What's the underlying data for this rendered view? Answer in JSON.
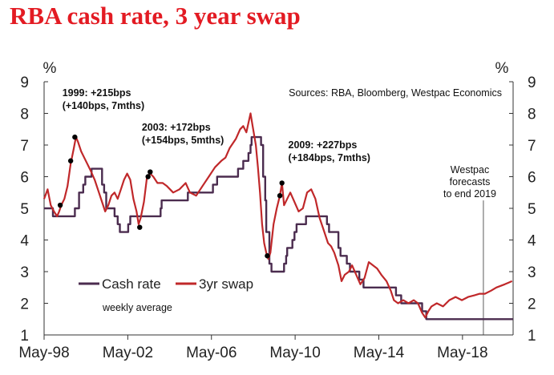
{
  "chart_data": {
    "type": "line",
    "title": "RBA cash rate, 3 year swap",
    "source": "Sources: RBA, Bloomberg, Westpac Economics",
    "ylabel_left": "%",
    "ylabel_right": "%",
    "ylim": [
      1,
      9
    ],
    "yticks": [
      "1",
      "2",
      "3",
      "4",
      "5",
      "6",
      "7",
      "8",
      "9"
    ],
    "xlim": [
      1998.33,
      2020.75
    ],
    "xticks": [
      {
        "label": "May-98",
        "value": 1998.33
      },
      {
        "label": "May-02",
        "value": 2002.33
      },
      {
        "label": "May-06",
        "value": 2006.33
      },
      {
        "label": "May-10",
        "value": 2010.33
      },
      {
        "label": "May-14",
        "value": 2014.33
      },
      {
        "label": "May-18",
        "value": 2018.33
      }
    ],
    "note": "weekly average",
    "forecast_start": 2019.33,
    "forecast_label": [
      "Westpac",
      "forecasts",
      "to end 2019"
    ],
    "annotations": [
      {
        "lines": [
          "1999: +215bps",
          "(+140bps, 7mths)"
        ],
        "x": 1999.2,
        "y": 8.55
      },
      {
        "lines": [
          "2003: +172bps",
          "(+154bps, 5mths)"
        ],
        "x": 2003.0,
        "y": 7.45
      },
      {
        "lines": [
          "2009: +227bps",
          "(+184bps, 7mths)"
        ],
        "x": 2010.0,
        "y": 6.9
      }
    ],
    "markers": [
      {
        "x": 1999.1,
        "y": 5.1
      },
      {
        "x": 1999.6,
        "y": 6.5
      },
      {
        "x": 1999.8,
        "y": 7.25
      },
      {
        "x": 2002.9,
        "y": 4.4
      },
      {
        "x": 2003.3,
        "y": 6.0
      },
      {
        "x": 2003.4,
        "y": 6.15
      },
      {
        "x": 2009.0,
        "y": 3.5
      },
      {
        "x": 2009.6,
        "y": 5.4
      },
      {
        "x": 2009.7,
        "y": 5.8
      }
    ],
    "series": [
      {
        "name": "Cash rate",
        "color": "#4b2c4f",
        "step": true,
        "points": [
          [
            1998.33,
            5.0
          ],
          [
            1998.75,
            4.75
          ],
          [
            1999.8,
            5.0
          ],
          [
            2000.0,
            5.5
          ],
          [
            2000.2,
            5.75
          ],
          [
            2000.3,
            6.0
          ],
          [
            2000.6,
            6.25
          ],
          [
            2001.1,
            5.75
          ],
          [
            2001.2,
            5.5
          ],
          [
            2001.3,
            5.0
          ],
          [
            2001.7,
            4.75
          ],
          [
            2001.85,
            4.5
          ],
          [
            2001.95,
            4.25
          ],
          [
            2002.35,
            4.5
          ],
          [
            2002.45,
            4.75
          ],
          [
            2003.9,
            5.0
          ],
          [
            2003.95,
            5.25
          ],
          [
            2005.2,
            5.5
          ],
          [
            2006.4,
            5.75
          ],
          [
            2006.6,
            6.0
          ],
          [
            2007.6,
            6.25
          ],
          [
            2007.85,
            6.5
          ],
          [
            2008.1,
            6.75
          ],
          [
            2008.2,
            7.0
          ],
          [
            2008.25,
            7.25
          ],
          [
            2008.7,
            7.0
          ],
          [
            2008.8,
            6.0
          ],
          [
            2008.9,
            5.25
          ],
          [
            2008.95,
            4.25
          ],
          [
            2009.1,
            3.25
          ],
          [
            2009.2,
            3.0
          ],
          [
            2009.8,
            3.25
          ],
          [
            2009.9,
            3.5
          ],
          [
            2009.95,
            3.75
          ],
          [
            2010.2,
            4.0
          ],
          [
            2010.3,
            4.25
          ],
          [
            2010.4,
            4.5
          ],
          [
            2010.85,
            4.75
          ],
          [
            2011.85,
            4.5
          ],
          [
            2011.95,
            4.25
          ],
          [
            2012.4,
            3.75
          ],
          [
            2012.5,
            3.5
          ],
          [
            2012.8,
            3.25
          ],
          [
            2012.95,
            3.0
          ],
          [
            2013.4,
            2.75
          ],
          [
            2013.6,
            2.5
          ],
          [
            2015.15,
            2.25
          ],
          [
            2015.4,
            2.0
          ],
          [
            2016.4,
            1.75
          ],
          [
            2016.6,
            1.5
          ],
          [
            2020.75,
            1.5
          ]
        ]
      },
      {
        "name": "3yr swap",
        "color": "#c0282a",
        "step": false,
        "points": [
          [
            1998.33,
            5.3
          ],
          [
            1998.5,
            5.6
          ],
          [
            1998.65,
            5.1
          ],
          [
            1998.8,
            4.9
          ],
          [
            1998.95,
            4.75
          ],
          [
            1999.05,
            4.9
          ],
          [
            1999.15,
            5.1
          ],
          [
            1999.3,
            5.3
          ],
          [
            1999.45,
            5.7
          ],
          [
            1999.6,
            6.4
          ],
          [
            1999.75,
            6.9
          ],
          [
            1999.85,
            7.25
          ],
          [
            1999.95,
            7.1
          ],
          [
            2000.1,
            6.8
          ],
          [
            2000.25,
            6.6
          ],
          [
            2000.4,
            6.4
          ],
          [
            2000.55,
            6.2
          ],
          [
            2000.75,
            5.9
          ],
          [
            2000.95,
            5.5
          ],
          [
            2001.1,
            5.2
          ],
          [
            2001.25,
            4.9
          ],
          [
            2001.4,
            5.1
          ],
          [
            2001.55,
            5.4
          ],
          [
            2001.7,
            5.5
          ],
          [
            2001.85,
            5.3
          ],
          [
            2002.0,
            5.6
          ],
          [
            2002.15,
            5.9
          ],
          [
            2002.3,
            6.1
          ],
          [
            2002.45,
            5.9
          ],
          [
            2002.6,
            5.3
          ],
          [
            2002.75,
            4.9
          ],
          [
            2002.85,
            4.5
          ],
          [
            2002.95,
            4.7
          ],
          [
            2003.1,
            5.2
          ],
          [
            2003.25,
            6.0
          ],
          [
            2003.4,
            6.1
          ],
          [
            2003.55,
            6.0
          ],
          [
            2003.75,
            5.8
          ],
          [
            2004.0,
            5.8
          ],
          [
            2004.2,
            5.7
          ],
          [
            2004.5,
            5.5
          ],
          [
            2004.8,
            5.6
          ],
          [
            2005.1,
            5.8
          ],
          [
            2005.3,
            5.5
          ],
          [
            2005.6,
            5.4
          ],
          [
            2005.9,
            5.7
          ],
          [
            2006.2,
            6.0
          ],
          [
            2006.5,
            6.3
          ],
          [
            2006.8,
            6.5
          ],
          [
            2007.0,
            6.6
          ],
          [
            2007.2,
            6.9
          ],
          [
            2007.5,
            7.2
          ],
          [
            2007.7,
            7.5
          ],
          [
            2007.85,
            7.6
          ],
          [
            2008.0,
            7.4
          ],
          [
            2008.1,
            7.7
          ],
          [
            2008.2,
            8.0
          ],
          [
            2008.3,
            7.6
          ],
          [
            2008.45,
            7.0
          ],
          [
            2008.55,
            6.3
          ],
          [
            2008.65,
            5.5
          ],
          [
            2008.75,
            4.5
          ],
          [
            2008.85,
            3.9
          ],
          [
            2008.95,
            3.6
          ],
          [
            2009.05,
            3.4
          ],
          [
            2009.15,
            3.6
          ],
          [
            2009.3,
            4.5
          ],
          [
            2009.45,
            5.0
          ],
          [
            2009.6,
            5.4
          ],
          [
            2009.7,
            5.8
          ],
          [
            2009.8,
            5.1
          ],
          [
            2009.95,
            5.3
          ],
          [
            2010.1,
            5.5
          ],
          [
            2010.3,
            5.2
          ],
          [
            2010.5,
            4.9
          ],
          [
            2010.7,
            5.0
          ],
          [
            2010.9,
            5.5
          ],
          [
            2011.1,
            5.6
          ],
          [
            2011.3,
            5.3
          ],
          [
            2011.5,
            4.7
          ],
          [
            2011.7,
            4.3
          ],
          [
            2011.9,
            3.9
          ],
          [
            2012.05,
            3.8
          ],
          [
            2012.2,
            3.6
          ],
          [
            2012.4,
            3.2
          ],
          [
            2012.55,
            2.7
          ],
          [
            2012.7,
            2.9
          ],
          [
            2012.9,
            3.0
          ],
          [
            2013.05,
            3.2
          ],
          [
            2013.25,
            2.9
          ],
          [
            2013.45,
            2.6
          ],
          [
            2013.65,
            2.8
          ],
          [
            2013.85,
            3.3
          ],
          [
            2014.05,
            3.2
          ],
          [
            2014.25,
            3.1
          ],
          [
            2014.45,
            2.9
          ],
          [
            2014.7,
            2.7
          ],
          [
            2014.9,
            2.4
          ],
          [
            2015.05,
            2.1
          ],
          [
            2015.25,
            2.0
          ],
          [
            2015.5,
            2.1
          ],
          [
            2015.75,
            2.0
          ],
          [
            2016.0,
            2.1
          ],
          [
            2016.2,
            2.0
          ],
          [
            2016.4,
            1.7
          ],
          [
            2016.55,
            1.55
          ],
          [
            2016.7,
            1.75
          ],
          [
            2016.85,
            1.9
          ],
          [
            2017.1,
            2.0
          ],
          [
            2017.4,
            1.9
          ],
          [
            2017.7,
            2.1
          ],
          [
            2018.0,
            2.2
          ],
          [
            2018.3,
            2.1
          ],
          [
            2018.6,
            2.2
          ],
          [
            2018.9,
            2.25
          ],
          [
            2019.15,
            2.3
          ],
          [
            2019.4,
            2.3
          ],
          [
            2019.7,
            2.4
          ],
          [
            2019.95,
            2.5
          ],
          [
            2020.35,
            2.6
          ],
          [
            2020.7,
            2.7
          ]
        ]
      }
    ]
  }
}
